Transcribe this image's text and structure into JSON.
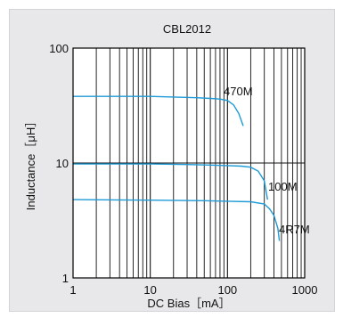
{
  "chart_data": {
    "type": "line",
    "title": "CBL2012",
    "xlabel": "DC Bias［mA］",
    "ylabel": "Inductance［μH］",
    "x_scale": "log",
    "y_scale": "log",
    "xlim": [
      1,
      1000
    ],
    "ylim": [
      1,
      100
    ],
    "x_tick_labels": [
      "1",
      "10",
      "100",
      "1000"
    ],
    "y_tick_labels": [
      "1",
      "10",
      "100"
    ],
    "grid": true,
    "series_color": "#1e9ad6",
    "series": [
      {
        "name": "470M",
        "x": [
          1,
          10,
          20,
          40,
          60,
          80,
          100,
          120,
          140,
          160
        ],
        "y": [
          38,
          38,
          37.5,
          37,
          36.5,
          36,
          35,
          32,
          27,
          21
        ]
      },
      {
        "name": "100M",
        "x": [
          1,
          10,
          30,
          60,
          100,
          150,
          200,
          250,
          300,
          330
        ],
        "y": [
          9.8,
          9.8,
          9.7,
          9.6,
          9.5,
          9.4,
          9.2,
          8.5,
          7,
          4.8
        ]
      },
      {
        "name": "4R7M",
        "x": [
          1,
          10,
          50,
          100,
          200,
          300,
          350,
          400,
          450,
          470
        ],
        "y": [
          4.8,
          4.75,
          4.7,
          4.65,
          4.6,
          4.4,
          4.0,
          3.5,
          2.7,
          2.1
        ]
      }
    ]
  }
}
